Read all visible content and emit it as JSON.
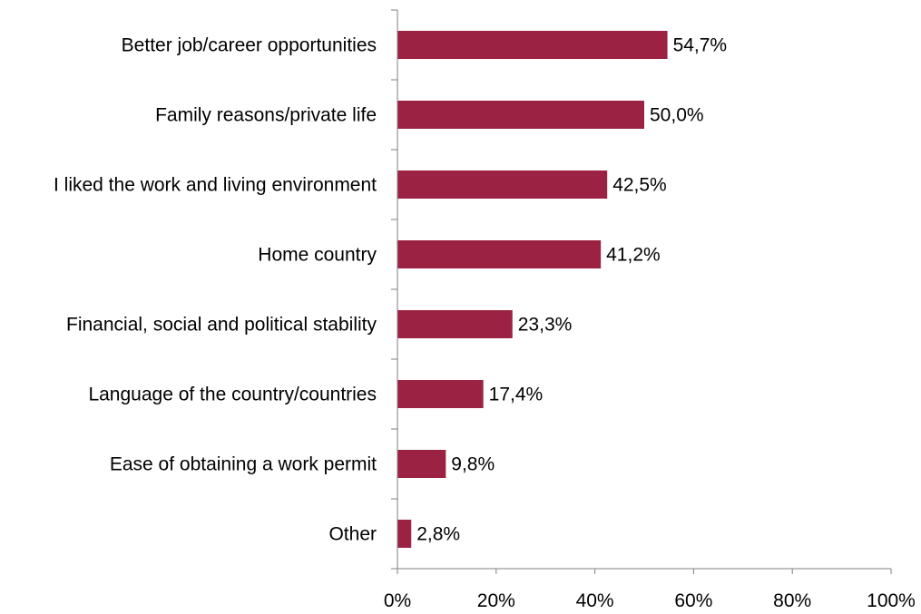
{
  "chart_data": {
    "type": "bar",
    "orientation": "horizontal",
    "title": "",
    "xlabel": "",
    "ylabel": "",
    "categories": [
      "Better job/career opportunities",
      "Family reasons/private life",
      "I liked the work and living environment",
      "Home country",
      "Financial, social and political stability",
      "Language of the country/countries",
      "Ease of obtaining a work permit",
      "Other"
    ],
    "values": [
      54.7,
      50.0,
      42.5,
      41.2,
      23.3,
      17.4,
      9.8,
      2.8
    ],
    "value_labels": [
      "54,7%",
      "50,0%",
      "42,5%",
      "41,2%",
      "23,3%",
      "17,4%",
      "9,8%",
      "2,8%"
    ],
    "xlim": [
      0,
      100
    ],
    "x_ticks": [
      0,
      20,
      40,
      60,
      80,
      100
    ],
    "x_tick_labels": [
      "0%",
      "20%",
      "40%",
      "60%",
      "80%",
      "100%"
    ],
    "grid": false,
    "legend": "none",
    "bar_color": "#9b2242"
  }
}
